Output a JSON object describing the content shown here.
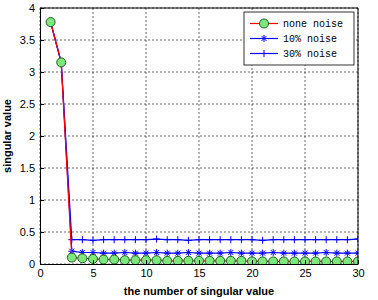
{
  "chart_data": {
    "type": "line",
    "xlabel": "the number of singular value",
    "ylabel": "singular value",
    "x": [
      1,
      2,
      3,
      4,
      5,
      6,
      7,
      8,
      9,
      10,
      11,
      12,
      13,
      14,
      15,
      16,
      17,
      18,
      19,
      20,
      21,
      22,
      23,
      24,
      25,
      26,
      27,
      28,
      29,
      30
    ],
    "series": [
      {
        "name": "none noise",
        "color": "#ff0000",
        "marker": "circle",
        "values": [
          3.78,
          3.15,
          0.1,
          0.09,
          0.08,
          0.07,
          0.07,
          0.06,
          0.06,
          0.06,
          0.06,
          0.05,
          0.05,
          0.05,
          0.05,
          0.05,
          0.05,
          0.05,
          0.05,
          0.04,
          0.04,
          0.04,
          0.04,
          0.04,
          0.04,
          0.04,
          0.04,
          0.04,
          0.04,
          0.04
        ]
      },
      {
        "name": "10% noise",
        "color": "#0000ff",
        "marker": "star",
        "values": [
          3.78,
          3.15,
          0.2,
          0.18,
          0.18,
          0.17,
          0.17,
          0.18,
          0.17,
          0.17,
          0.18,
          0.17,
          0.17,
          0.18,
          0.17,
          0.17,
          0.17,
          0.18,
          0.17,
          0.17,
          0.17,
          0.18,
          0.17,
          0.17,
          0.17,
          0.17,
          0.18,
          0.17,
          0.17,
          0.17
        ]
      },
      {
        "name": "30% noise",
        "color": "#0000ff",
        "marker": "plus",
        "values": [
          3.78,
          3.15,
          0.38,
          0.38,
          0.37,
          0.38,
          0.38,
          0.38,
          0.38,
          0.38,
          0.39,
          0.38,
          0.38,
          0.37,
          0.38,
          0.38,
          0.38,
          0.38,
          0.38,
          0.38,
          0.37,
          0.38,
          0.38,
          0.38,
          0.38,
          0.38,
          0.38,
          0.38,
          0.38,
          0.39
        ]
      }
    ],
    "xlim": [
      0,
      30
    ],
    "xticks": [
      0,
      5,
      10,
      15,
      20,
      25,
      30
    ],
    "ylim": [
      0,
      4
    ],
    "yticks": [
      0,
      0.5,
      1,
      1.5,
      2,
      2.5,
      3,
      3.5,
      4
    ],
    "grid": true,
    "legend": "upper right"
  }
}
